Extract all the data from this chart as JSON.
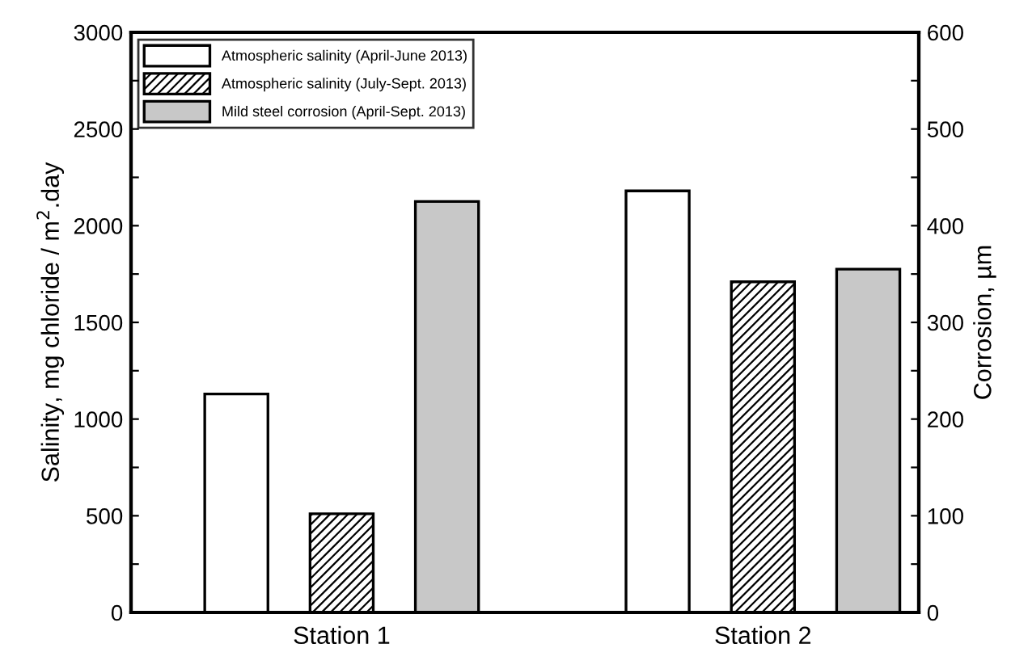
{
  "chart_data": {
    "type": "bar",
    "categories": [
      "Station 1",
      "Station 2"
    ],
    "ylabel": "Salinity, mg chloride / m$^{2}$.day",
    "y2label": "Corrosion, µm",
    "series": [
      {
        "name": "Atmospheric salinity (April-June 2013)",
        "color": "#ffffff",
        "values": [
          1130,
          2180
        ]
      },
      {
        "name": "Atmospheric salinity (July-Sept. 2013)",
        "color": "#000000",
        "values": [
          510,
          1710
        ]
      },
      {
        "name": "Mild steel corrosion (April-Sept. 2013)",
        "color": "#c8c8c8",
        "values": [
          425,
          355
        ],
        "axis": "y2"
      }
    ],
    "ylim": [
      0,
      3000
    ],
    "yticks": [
      0,
      {
        "value": 250,
        "label": null
      },
      500,
      {
        "value": 750,
        "label": null
      },
      1000,
      {
        "value": 1250,
        "label": null
      },
      1500,
      {
        "value": 1750,
        "label": null
      },
      2000,
      {
        "value": 2250,
        "label": null
      },
      2500,
      {
        "value": 2750,
        "label": null
      },
      3000
    ],
    "y2lim": [
      0,
      600
    ],
    "y2ticks": [
      0,
      {
        "value": 50,
        "label": null
      },
      100,
      {
        "value": 150,
        "label": null
      },
      200,
      {
        "value": 250,
        "label": null
      },
      300,
      {
        "value": 350,
        "label": null
      },
      400,
      {
        "value": 450,
        "label": null
      },
      500,
      {
        "value": 550,
        "label": null
      },
      600
    ],
    "legend": "top left",
    "grid": false
  }
}
